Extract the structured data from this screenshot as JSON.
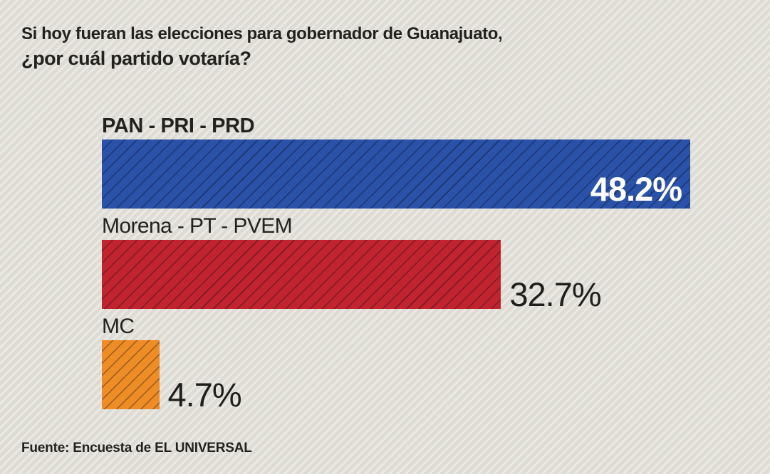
{
  "header": {
    "title_line1": "Si hoy fueran las elecciones para gobernador de Guanajuato,",
    "title_line2": "¿por cuál partido votaría?"
  },
  "chart_data": {
    "type": "bar",
    "orientation": "horizontal",
    "title": "Si hoy fueran las elecciones para gobernador de Guanajuato, ¿por cuál partido votaría?",
    "unit": "%",
    "categories": [
      "PAN - PRI - PRD",
      "Morena - PT - PVEM",
      "MC"
    ],
    "values": [
      48.2,
      32.7,
      4.7
    ],
    "xlim": [
      0,
      50
    ],
    "grid": false,
    "legend": false,
    "hatch_pattern": "diagonal-lines",
    "bars": [
      {
        "label": "PAN - PRI - PRD",
        "value": 48.2,
        "display_value": "48.2%",
        "color": "#2a52a8",
        "value_position": "inside",
        "value_color": "#ffffff",
        "label_bold": true
      },
      {
        "label": "Morena - PT - PVEM",
        "value": 32.7,
        "display_value": "32.7%",
        "color": "#c2242f",
        "value_position": "outside",
        "value_color": "#1f1e1c",
        "label_bold": false
      },
      {
        "label": "MC",
        "value": 4.7,
        "display_value": "4.7%",
        "color": "#ee8d26",
        "value_position": "outside",
        "value_color": "#1f1e1c",
        "label_bold": false
      }
    ]
  },
  "footer": {
    "source": "Fuente: Encuesta de EL UNIVERSAL"
  },
  "style": {
    "background": "#dedcd4",
    "text_color": "#23221f",
    "bar_max_color": "#2a52a8"
  }
}
